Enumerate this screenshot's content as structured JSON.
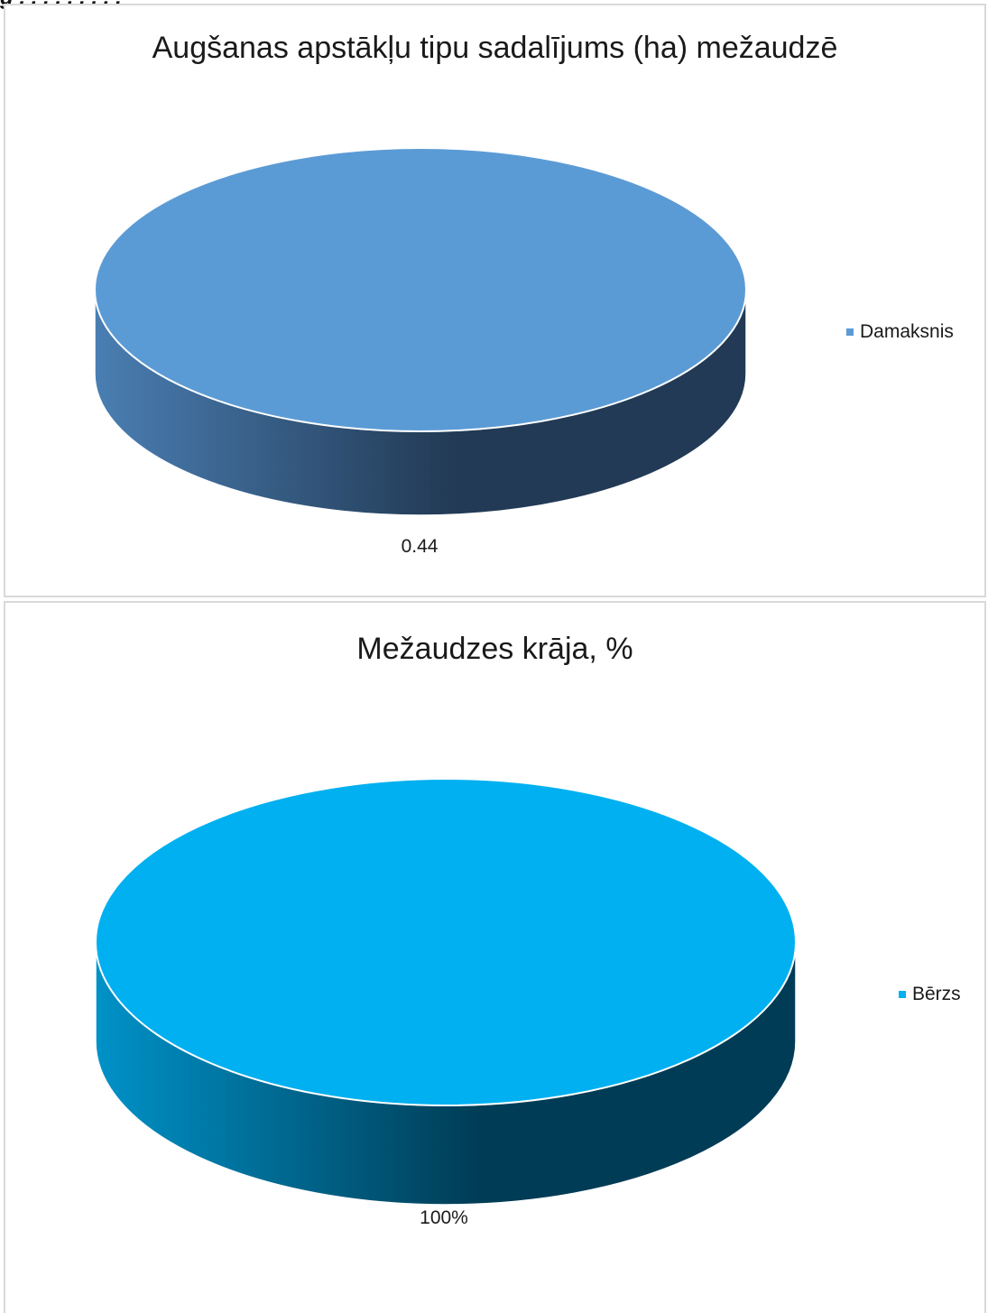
{
  "header_fragment": "g . . . . . . . . .",
  "chart_data": [
    {
      "type": "pie",
      "title": "Augšanas apstākļu tipu sadalījums (ha) mežaudzē",
      "slices": [
        {
          "label": "Damaksnis",
          "value": 0.44,
          "color": "#5b9bd5",
          "side_dark": "#223a55",
          "side_light": "#4a7eb2"
        }
      ],
      "data_labels": [
        "0.44"
      ],
      "legend_position": "right",
      "style": "3d"
    },
    {
      "type": "pie",
      "title": "Mežaudzes krāja, %",
      "slices": [
        {
          "label": "Bērzs",
          "value": 100,
          "color": "#00b0f0",
          "side_dark": "#003c55",
          "side_light": "#0092c8"
        }
      ],
      "data_labels": [
        "100%"
      ],
      "legend_position": "right",
      "style": "3d"
    }
  ]
}
